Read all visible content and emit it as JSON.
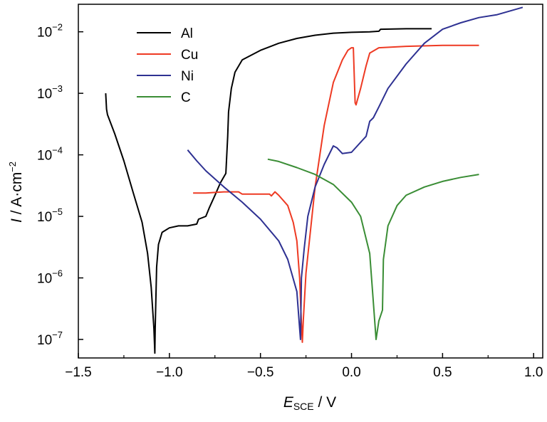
{
  "chart_data": {
    "type": "line",
    "xlabel": {
      "symbol": "E",
      "subscript": "SCE",
      "unit": " / V"
    },
    "ylabel": {
      "symbol": "I",
      "unit": " / A·cm",
      "exponent": "−2"
    },
    "xlim": [
      -1.5,
      1.05
    ],
    "ylim": [
      5e-08,
      0.028
    ],
    "yscale": "log",
    "xticks": [
      -1.5,
      -1.0,
      -0.5,
      0.0,
      0.5,
      1.0
    ],
    "xtick_labels": [
      "−1.5",
      "−1.0",
      "−0.5",
      "0.0",
      "0.5",
      "1.0"
    ],
    "yticks": [
      1e-07,
      1e-06,
      1e-05,
      0.0001,
      0.001,
      0.01
    ],
    "ytick_base": "10",
    "ytick_exponents": [
      "−7",
      "−6",
      "−5",
      "−4",
      "−3",
      "−2"
    ],
    "grid": false,
    "legend_position": "top-left",
    "series": [
      {
        "name": "Al",
        "color": "#000000",
        "points": [
          [
            -1.35,
            0.001
          ],
          [
            -1.345,
            0.00055
          ],
          [
            -1.34,
            0.00045
          ],
          [
            -1.3,
            0.00022
          ],
          [
            -1.25,
            8e-05
          ],
          [
            -1.2,
            2.5e-05
          ],
          [
            -1.15,
            8e-06
          ],
          [
            -1.12,
            2.5e-06
          ],
          [
            -1.1,
            7e-07
          ],
          [
            -1.085,
            1.5e-07
          ],
          [
            -1.08,
            6e-08
          ],
          [
            -1.078,
            1.5e-07
          ],
          [
            -1.07,
            1.5e-06
          ],
          [
            -1.06,
            3.5e-06
          ],
          [
            -1.04,
            5.5e-06
          ],
          [
            -1.0,
            6.5e-06
          ],
          [
            -0.95,
            7e-06
          ],
          [
            -0.9,
            7e-06
          ],
          [
            -0.85,
            7.5e-06
          ],
          [
            -0.84,
            9e-06
          ],
          [
            -0.8,
            1e-05
          ],
          [
            -0.78,
            1.4e-05
          ],
          [
            -0.75,
            2.2e-05
          ],
          [
            -0.72,
            3.5e-05
          ],
          [
            -0.69,
            5e-05
          ],
          [
            -0.68,
            0.0002
          ],
          [
            -0.675,
            0.0005
          ],
          [
            -0.66,
            0.0012
          ],
          [
            -0.64,
            0.0022
          ],
          [
            -0.6,
            0.0035
          ],
          [
            -0.5,
            0.005
          ],
          [
            -0.4,
            0.0065
          ],
          [
            -0.3,
            0.0078
          ],
          [
            -0.2,
            0.0088
          ],
          [
            -0.1,
            0.0095
          ],
          [
            0.0,
            0.0098
          ],
          [
            0.1,
            0.01
          ],
          [
            0.15,
            0.0102
          ],
          [
            0.16,
            0.011
          ],
          [
            0.3,
            0.0112
          ],
          [
            0.44,
            0.0112
          ]
        ]
      },
      {
        "name": "Cu",
        "color": "#ee3a23",
        "points": [
          [
            -0.87,
            2.4e-05
          ],
          [
            -0.8,
            2.4e-05
          ],
          [
            -0.75,
            2.45e-05
          ],
          [
            -0.7,
            2.5e-05
          ],
          [
            -0.62,
            2.5e-05
          ],
          [
            -0.6,
            2.3e-05
          ],
          [
            -0.5,
            2.3e-05
          ],
          [
            -0.45,
            2.3e-05
          ],
          [
            -0.44,
            2.15e-05
          ],
          [
            -0.42,
            2.5e-05
          ],
          [
            -0.4,
            2.2e-05
          ],
          [
            -0.35,
            1.5e-05
          ],
          [
            -0.32,
            8e-06
          ],
          [
            -0.3,
            4e-06
          ],
          [
            -0.285,
            1e-06
          ],
          [
            -0.278,
            3e-07
          ],
          [
            -0.27,
            9e-08
          ],
          [
            -0.265,
            2e-07
          ],
          [
            -0.25,
            1.2e-06
          ],
          [
            -0.2,
            3e-05
          ],
          [
            -0.15,
            0.0003
          ],
          [
            -0.1,
            0.0015
          ],
          [
            -0.05,
            0.0035
          ],
          [
            -0.02,
            0.005
          ],
          [
            0.0,
            0.0055
          ],
          [
            0.01,
            0.0055
          ],
          [
            0.02,
            0.0007
          ],
          [
            0.025,
            0.00065
          ],
          [
            0.05,
            0.0012
          ],
          [
            0.08,
            0.0028
          ],
          [
            0.1,
            0.0045
          ],
          [
            0.15,
            0.0055
          ],
          [
            0.3,
            0.0058
          ],
          [
            0.5,
            0.006
          ],
          [
            0.7,
            0.006
          ]
        ]
      },
      {
        "name": "Ni",
        "color": "#2e3192",
        "points": [
          [
            -0.9,
            0.00012
          ],
          [
            -0.85,
            8e-05
          ],
          [
            -0.8,
            5.5e-05
          ],
          [
            -0.7,
            3e-05
          ],
          [
            -0.6,
            1.7e-05
          ],
          [
            -0.5,
            9e-06
          ],
          [
            -0.4,
            4e-06
          ],
          [
            -0.35,
            2e-06
          ],
          [
            -0.3,
            6e-07
          ],
          [
            -0.285,
            1.5e-07
          ],
          [
            -0.28,
            1e-07
          ],
          [
            -0.275,
            1e-06
          ],
          [
            -0.26,
            3e-06
          ],
          [
            -0.24,
            1e-05
          ],
          [
            -0.2,
            3e-05
          ],
          [
            -0.15,
            7e-05
          ],
          [
            -0.1,
            0.00014
          ],
          [
            -0.08,
            0.00013
          ],
          [
            -0.05,
            0.000105
          ],
          [
            0.0,
            0.00011
          ],
          [
            0.05,
            0.00016
          ],
          [
            0.08,
            0.0002
          ],
          [
            0.1,
            0.00035
          ],
          [
            0.12,
            0.0004
          ],
          [
            0.15,
            0.0006
          ],
          [
            0.2,
            0.0012
          ],
          [
            0.3,
            0.003
          ],
          [
            0.4,
            0.0065
          ],
          [
            0.5,
            0.011
          ],
          [
            0.6,
            0.014
          ],
          [
            0.7,
            0.017
          ],
          [
            0.8,
            0.019
          ],
          [
            0.94,
            0.025
          ]
        ]
      },
      {
        "name": "C",
        "color": "#3a8d35",
        "points": [
          [
            -0.46,
            8.5e-05
          ],
          [
            -0.4,
            7.8e-05
          ],
          [
            -0.3,
            6.2e-05
          ],
          [
            -0.2,
            4.8e-05
          ],
          [
            -0.1,
            3.3e-05
          ],
          [
            0.0,
            1.7e-05
          ],
          [
            0.05,
            1e-05
          ],
          [
            0.1,
            2.5e-06
          ],
          [
            0.12,
            4e-07
          ],
          [
            0.135,
            1e-07
          ],
          [
            0.15,
            2e-07
          ],
          [
            0.17,
            3e-07
          ],
          [
            0.175,
            2e-06
          ],
          [
            0.2,
            7e-06
          ],
          [
            0.25,
            1.5e-05
          ],
          [
            0.3,
            2.2e-05
          ],
          [
            0.4,
            3e-05
          ],
          [
            0.5,
            3.7e-05
          ],
          [
            0.6,
            4.3e-05
          ],
          [
            0.7,
            4.8e-05
          ]
        ]
      }
    ]
  }
}
